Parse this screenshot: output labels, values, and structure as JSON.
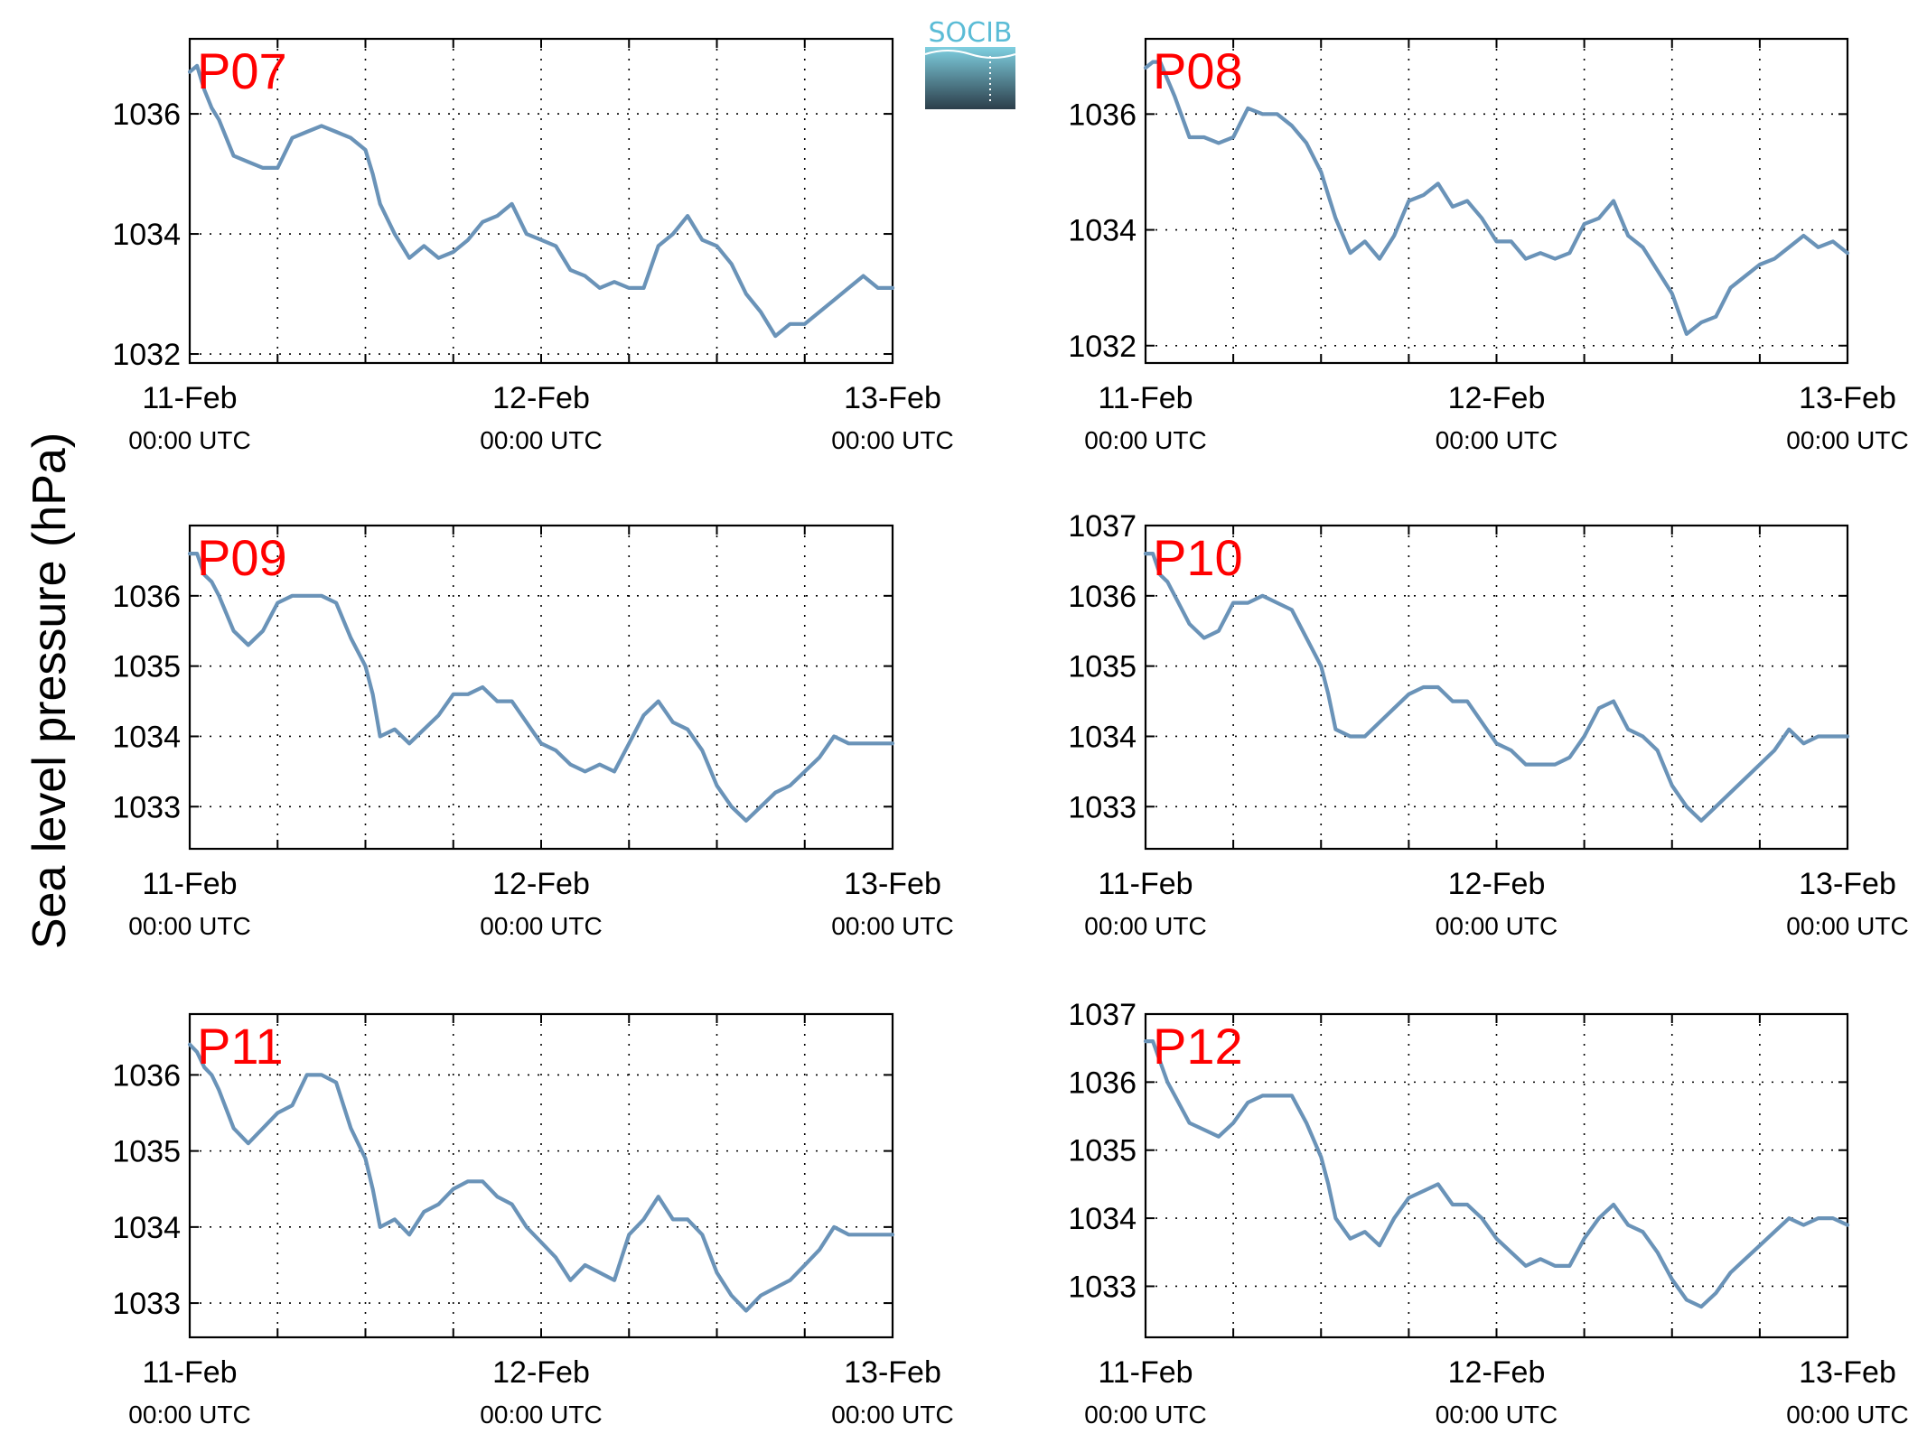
{
  "figure": {
    "ylabel": "Sea level pressure (hPa)",
    "logo": {
      "text": "SOCIB",
      "colors": {
        "text": "#5bbcd6",
        "top": "#7fcfe0",
        "bottom": "#2c3e4a"
      }
    },
    "colors": {
      "series": "#6a93b8",
      "label": "#ff0000",
      "grid": "#000000"
    }
  },
  "chart_data": [
    {
      "type": "line",
      "title": "P07",
      "xlabel": "",
      "ylabel": "Sea level pressure (hPa)",
      "xlim": [
        "2013-02-11T00:00Z",
        "2013-02-13T00:00Z"
      ],
      "ylim": [
        1031.85,
        1037.25
      ],
      "grid": true,
      "xticks": [
        {
          "date": "11-Feb",
          "time": "00:00 UTC",
          "t": 0
        },
        {
          "date": "12-Feb",
          "time": "00:00 UTC",
          "t": 24
        },
        {
          "date": "13-Feb",
          "time": "00:00 UTC",
          "t": 48
        }
      ],
      "xgrid_hours": [
        6,
        12,
        18,
        24,
        30,
        36,
        42
      ],
      "yticks": [
        1032,
        1034,
        1036
      ],
      "series": [
        {
          "x_hours": [
            0,
            0.5,
            1,
            1.5,
            2,
            3,
            4,
            5,
            6,
            7,
            8,
            9,
            10,
            11,
            12,
            12.5,
            13,
            14,
            15,
            16,
            17,
            18,
            19,
            20,
            21,
            22,
            23,
            24,
            25,
            26,
            27,
            28,
            29,
            30,
            31,
            32,
            33,
            34,
            35,
            36,
            37,
            38,
            39,
            40,
            41,
            42,
            43,
            44,
            45,
            46,
            47,
            48
          ],
          "y": [
            1036.7,
            1036.8,
            1036.4,
            1036.1,
            1035.9,
            1035.3,
            1035.2,
            1035.1,
            1035.1,
            1035.6,
            1035.7,
            1035.8,
            1035.7,
            1035.6,
            1035.4,
            1035.0,
            1034.5,
            1034.0,
            1033.6,
            1033.8,
            1033.6,
            1033.7,
            1033.9,
            1034.2,
            1034.3,
            1034.5,
            1034.0,
            1033.9,
            1033.8,
            1033.4,
            1033.3,
            1033.1,
            1033.2,
            1033.1,
            1033.1,
            1033.8,
            1034.0,
            1034.3,
            1033.9,
            1033.8,
            1033.5,
            1033.0,
            1032.7,
            1032.3,
            1032.5,
            1032.5,
            1032.7,
            1032.9,
            1033.1,
            1033.3,
            1033.1,
            1033.1
          ]
        }
      ]
    },
    {
      "type": "line",
      "title": "P08",
      "xlabel": "",
      "ylabel": "Sea level pressure (hPa)",
      "xlim": [
        "2013-02-11T00:00Z",
        "2013-02-13T00:00Z"
      ],
      "ylim": [
        1031.7,
        1037.3
      ],
      "grid": true,
      "xticks": [
        {
          "date": "11-Feb",
          "time": "00:00 UTC",
          "t": 0
        },
        {
          "date": "12-Feb",
          "time": "00:00 UTC",
          "t": 24
        },
        {
          "date": "13-Feb",
          "time": "00:00 UTC",
          "t": 48
        }
      ],
      "xgrid_hours": [
        6,
        12,
        18,
        24,
        30,
        36,
        42
      ],
      "yticks": [
        1032,
        1034,
        1036
      ],
      "series": [
        {
          "x_hours": [
            0,
            0.5,
            1,
            1.5,
            2,
            3,
            4,
            5,
            6,
            7,
            8,
            9,
            10,
            11,
            12,
            12.5,
            13,
            14,
            15,
            16,
            17,
            18,
            19,
            20,
            21,
            22,
            23,
            24,
            25,
            26,
            27,
            28,
            29,
            30,
            31,
            32,
            33,
            34,
            35,
            36,
            37,
            38,
            39,
            40,
            41,
            42,
            43,
            44,
            45,
            46,
            47,
            48
          ],
          "y": [
            1036.8,
            1036.9,
            1036.9,
            1036.6,
            1036.3,
            1035.6,
            1035.6,
            1035.5,
            1035.6,
            1036.1,
            1036.0,
            1036.0,
            1035.8,
            1035.5,
            1035.0,
            1034.6,
            1034.2,
            1033.6,
            1033.8,
            1033.5,
            1033.9,
            1034.5,
            1034.6,
            1034.8,
            1034.4,
            1034.5,
            1034.2,
            1033.8,
            1033.8,
            1033.5,
            1033.6,
            1033.5,
            1033.6,
            1034.1,
            1034.2,
            1034.5,
            1033.9,
            1033.7,
            1033.3,
            1032.9,
            1032.2,
            1032.4,
            1032.5,
            1033.0,
            1033.2,
            1033.4,
            1033.5,
            1033.7,
            1033.9,
            1033.7,
            1033.8,
            1033.6
          ]
        }
      ]
    },
    {
      "type": "line",
      "title": "P09",
      "xlabel": "",
      "ylabel": "Sea level pressure (hPa)",
      "xlim": [
        "2013-02-11T00:00Z",
        "2013-02-13T00:00Z"
      ],
      "ylim": [
        1032.4,
        1037.0
      ],
      "grid": true,
      "xticks": [
        {
          "date": "11-Feb",
          "time": "00:00 UTC",
          "t": 0
        },
        {
          "date": "12-Feb",
          "time": "00:00 UTC",
          "t": 24
        },
        {
          "date": "13-Feb",
          "time": "00:00 UTC",
          "t": 48
        }
      ],
      "xgrid_hours": [
        6,
        12,
        18,
        24,
        30,
        36,
        42
      ],
      "yticks": [
        1033,
        1034,
        1035,
        1036
      ],
      "series": [
        {
          "x_hours": [
            0,
            0.5,
            1,
            1.5,
            2,
            3,
            4,
            5,
            6,
            7,
            8,
            9,
            10,
            11,
            12,
            12.5,
            13,
            14,
            15,
            16,
            17,
            18,
            19,
            20,
            21,
            22,
            23,
            24,
            25,
            26,
            27,
            28,
            29,
            30,
            31,
            32,
            33,
            34,
            35,
            36,
            37,
            38,
            39,
            40,
            41,
            42,
            43,
            44,
            45,
            46,
            47,
            48
          ],
          "y": [
            1036.6,
            1036.6,
            1036.3,
            1036.2,
            1036.0,
            1035.5,
            1035.3,
            1035.5,
            1035.9,
            1036.0,
            1036.0,
            1036.0,
            1035.9,
            1035.4,
            1035.0,
            1034.6,
            1034.0,
            1034.1,
            1033.9,
            1034.1,
            1034.3,
            1034.6,
            1034.6,
            1034.7,
            1034.5,
            1034.5,
            1034.2,
            1033.9,
            1033.8,
            1033.6,
            1033.5,
            1033.6,
            1033.5,
            1033.9,
            1034.3,
            1034.5,
            1034.2,
            1034.1,
            1033.8,
            1033.3,
            1033.0,
            1032.8,
            1033.0,
            1033.2,
            1033.3,
            1033.5,
            1033.7,
            1034.0,
            1033.9,
            1033.9,
            1033.9,
            1033.9
          ]
        }
      ]
    },
    {
      "type": "line",
      "title": "P10",
      "xlabel": "",
      "ylabel": "Sea level pressure (hPa)",
      "xlim": [
        "2013-02-11T00:00Z",
        "2013-02-13T00:00Z"
      ],
      "ylim": [
        1032.4,
        1037.0
      ],
      "grid": true,
      "xticks": [
        {
          "date": "11-Feb",
          "time": "00:00 UTC",
          "t": 0
        },
        {
          "date": "12-Feb",
          "time": "00:00 UTC",
          "t": 24
        },
        {
          "date": "13-Feb",
          "time": "00:00 UTC",
          "t": 48
        }
      ],
      "xgrid_hours": [
        6,
        12,
        18,
        24,
        30,
        36,
        42
      ],
      "yticks": [
        1033,
        1034,
        1035,
        1036,
        1037
      ],
      "series": [
        {
          "x_hours": [
            0,
            0.5,
            1,
            1.5,
            2,
            3,
            4,
            5,
            6,
            7,
            8,
            9,
            10,
            11,
            12,
            12.5,
            13,
            14,
            15,
            16,
            17,
            18,
            19,
            20,
            21,
            22,
            23,
            24,
            25,
            26,
            27,
            28,
            29,
            30,
            31,
            32,
            33,
            34,
            35,
            36,
            37,
            38,
            39,
            40,
            41,
            42,
            43,
            44,
            45,
            46,
            47,
            48
          ],
          "y": [
            1036.6,
            1036.6,
            1036.3,
            1036.2,
            1036.0,
            1035.6,
            1035.4,
            1035.5,
            1035.9,
            1035.9,
            1036.0,
            1035.9,
            1035.8,
            1035.4,
            1035.0,
            1034.6,
            1034.1,
            1034.0,
            1034.0,
            1034.2,
            1034.4,
            1034.6,
            1034.7,
            1034.7,
            1034.5,
            1034.5,
            1034.2,
            1033.9,
            1033.8,
            1033.6,
            1033.6,
            1033.6,
            1033.7,
            1034.0,
            1034.4,
            1034.5,
            1034.1,
            1034.0,
            1033.8,
            1033.3,
            1033.0,
            1032.8,
            1033.0,
            1033.2,
            1033.4,
            1033.6,
            1033.8,
            1034.1,
            1033.9,
            1034.0,
            1034.0,
            1034.0
          ]
        }
      ]
    },
    {
      "type": "line",
      "title": "P11",
      "xlabel": "",
      "ylabel": "Sea level pressure (hPa)",
      "xlim": [
        "2013-02-11T00:00Z",
        "2013-02-13T00:00Z"
      ],
      "ylim": [
        1032.55,
        1036.8
      ],
      "grid": true,
      "xticks": [
        {
          "date": "11-Feb",
          "time": "00:00 UTC",
          "t": 0
        },
        {
          "date": "12-Feb",
          "time": "00:00 UTC",
          "t": 24
        },
        {
          "date": "13-Feb",
          "time": "00:00 UTC",
          "t": 48
        }
      ],
      "xgrid_hours": [
        6,
        12,
        18,
        24,
        30,
        36,
        42
      ],
      "yticks": [
        1033,
        1034,
        1035,
        1036
      ],
      "series": [
        {
          "x_hours": [
            0,
            0.5,
            1,
            1.5,
            2,
            3,
            4,
            5,
            6,
            7,
            8,
            9,
            10,
            11,
            12,
            12.5,
            13,
            14,
            15,
            16,
            17,
            18,
            19,
            20,
            21,
            22,
            23,
            24,
            25,
            26,
            27,
            28,
            29,
            30,
            31,
            32,
            33,
            34,
            35,
            36,
            37,
            38,
            39,
            40,
            41,
            42,
            43,
            44,
            45,
            46,
            47,
            48
          ],
          "y": [
            1036.4,
            1036.3,
            1036.1,
            1036.0,
            1035.8,
            1035.3,
            1035.1,
            1035.3,
            1035.5,
            1035.6,
            1036.0,
            1036.0,
            1035.9,
            1035.3,
            1034.9,
            1034.5,
            1034.0,
            1034.1,
            1033.9,
            1034.2,
            1034.3,
            1034.5,
            1034.6,
            1034.6,
            1034.4,
            1034.3,
            1034.0,
            1033.8,
            1033.6,
            1033.3,
            1033.5,
            1033.4,
            1033.3,
            1033.9,
            1034.1,
            1034.4,
            1034.1,
            1034.1,
            1033.9,
            1033.4,
            1033.1,
            1032.9,
            1033.1,
            1033.2,
            1033.3,
            1033.5,
            1033.7,
            1034.0,
            1033.9,
            1033.9,
            1033.9,
            1033.9
          ]
        }
      ]
    },
    {
      "type": "line",
      "title": "P12",
      "xlabel": "",
      "ylabel": "Sea level pressure (hPa)",
      "xlim": [
        "2013-02-11T00:00Z",
        "2013-02-13T00:00Z"
      ],
      "ylim": [
        1032.25,
        1037.0
      ],
      "grid": true,
      "xticks": [
        {
          "date": "11-Feb",
          "time": "00:00 UTC",
          "t": 0
        },
        {
          "date": "12-Feb",
          "time": "00:00 UTC",
          "t": 24
        },
        {
          "date": "13-Feb",
          "time": "00:00 UTC",
          "t": 48
        }
      ],
      "xgrid_hours": [
        6,
        12,
        18,
        24,
        30,
        36,
        42
      ],
      "yticks": [
        1033,
        1034,
        1035,
        1036,
        1037
      ],
      "series": [
        {
          "x_hours": [
            0,
            0.5,
            1,
            1.5,
            2,
            3,
            4,
            5,
            6,
            7,
            8,
            9,
            10,
            11,
            12,
            12.5,
            13,
            14,
            15,
            16,
            17,
            18,
            19,
            20,
            21,
            22,
            23,
            24,
            25,
            26,
            27,
            28,
            29,
            30,
            31,
            32,
            33,
            34,
            35,
            36,
            37,
            38,
            39,
            40,
            41,
            42,
            43,
            44,
            45,
            46,
            47,
            48
          ],
          "y": [
            1036.6,
            1036.6,
            1036.3,
            1036.0,
            1035.8,
            1035.4,
            1035.3,
            1035.2,
            1035.4,
            1035.7,
            1035.8,
            1035.8,
            1035.8,
            1035.4,
            1034.9,
            1034.5,
            1034.0,
            1033.7,
            1033.8,
            1033.6,
            1034.0,
            1034.3,
            1034.4,
            1034.5,
            1034.2,
            1034.2,
            1034.0,
            1033.7,
            1033.5,
            1033.3,
            1033.4,
            1033.3,
            1033.3,
            1033.7,
            1034.0,
            1034.2,
            1033.9,
            1033.8,
            1033.5,
            1033.1,
            1032.8,
            1032.7,
            1032.9,
            1033.2,
            1033.4,
            1033.6,
            1033.8,
            1034.0,
            1033.9,
            1034.0,
            1034.0,
            1033.9
          ]
        }
      ]
    }
  ]
}
